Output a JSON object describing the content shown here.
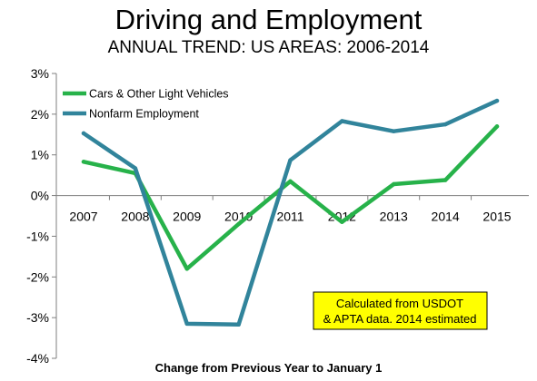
{
  "chart_data": {
    "type": "line",
    "title": "Driving and Employment",
    "subtitle": "ANNUAL TREND: US AREAS: 2006-2014",
    "xlabel": "Change from Previous Year to January 1",
    "ylabel": "",
    "categories": [
      "2007",
      "2008",
      "2009",
      "2010",
      "2011",
      "2012",
      "2013",
      "2014",
      "2015"
    ],
    "ylim": [
      -4,
      3
    ],
    "yticks": [
      3,
      2,
      1,
      0,
      -1,
      -2,
      -3,
      -4
    ],
    "ytick_labels": [
      "3%",
      "2%",
      "1%",
      "0%",
      "-1%",
      "-2%",
      "-3%",
      "-4%"
    ],
    "grid": false,
    "legend_position": "top-left",
    "series": [
      {
        "name": "Cars & Other Light Vehicles",
        "color": "#27b24a",
        "values": [
          0.83,
          0.55,
          -1.8,
          -0.7,
          0.35,
          -0.65,
          0.28,
          0.38,
          1.7
        ]
      },
      {
        "name": "Nonfarm Employment",
        "color": "#31849b",
        "values": [
          1.53,
          0.67,
          -3.15,
          -3.17,
          0.87,
          1.83,
          1.58,
          1.75,
          2.33
        ]
      }
    ],
    "annotation": {
      "lines": [
        "Calculated from USDOT",
        "& APTA data. 2014 estimated"
      ],
      "fill": "#ffff00"
    }
  }
}
